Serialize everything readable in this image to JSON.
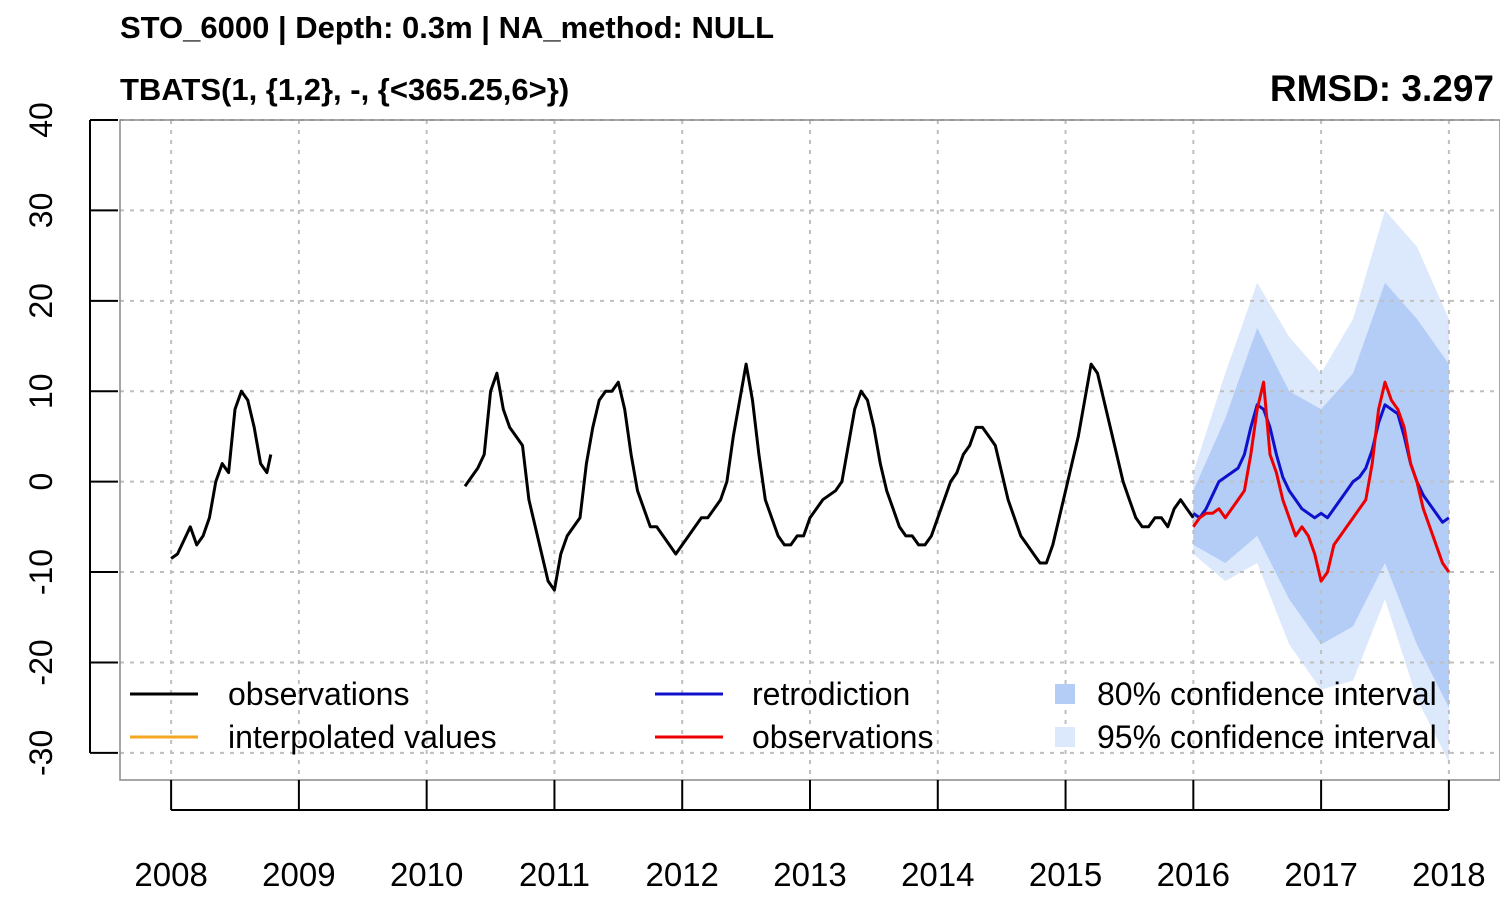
{
  "header": {
    "title": "STO_6000 | Depth: 0.3m | NA_method: NULL",
    "model": "TBATS(1, {1,2}, -, {<365.25,6>})",
    "rmsd": "RMSD: 3.297"
  },
  "colors": {
    "observations": "#000000",
    "interpolated": "#f5a623",
    "retrodiction": "#1010cc",
    "test_observations": "#ee0000",
    "ci80": "#b3cdf7",
    "ci95": "#dce8fc",
    "grid": "#bfbfbf"
  },
  "chart_data": {
    "type": "line",
    "title": "STO_6000 | Depth: 0.3m | NA_method: NULL",
    "subtitle": "TBATS(1, {1,2}, -, {<365.25,6>})",
    "annotation": "RMSD: 3.297",
    "xlabel": "",
    "ylabel": "",
    "xlim": [
      2007.6,
      2018.4
    ],
    "ylim": [
      -33,
      40
    ],
    "x_ticks": [
      2008,
      2009,
      2010,
      2011,
      2012,
      2013,
      2014,
      2015,
      2016,
      2017,
      2018
    ],
    "x_tick_labels": [
      "2008",
      "2009",
      "2010",
      "2011",
      "2012",
      "2013",
      "2014",
      "2015",
      "2016",
      "2017",
      "2018"
    ],
    "y_ticks": [
      -30,
      -20,
      -10,
      0,
      10,
      20,
      30,
      40
    ],
    "y_tick_labels": [
      "-30",
      "-20",
      "-10",
      "0",
      "10",
      "20",
      "30",
      "40"
    ],
    "grid": true,
    "legend_position": "bottom",
    "legend": [
      {
        "label": "observations",
        "kind": "line",
        "color": "#000000"
      },
      {
        "label": "interpolated values",
        "kind": "line",
        "color": "#f5a623"
      },
      {
        "label": "retrodiction",
        "kind": "line",
        "color": "#1010cc"
      },
      {
        "label": "observations",
        "kind": "line",
        "color": "#ee0000"
      },
      {
        "label": "80% confidence interval",
        "kind": "box",
        "color": "#b3cdf7"
      },
      {
        "label": "95% confidence interval",
        "kind": "box",
        "color": "#dce8fc"
      }
    ],
    "series": [
      {
        "kind": "observations",
        "segments": [
          {
            "x": [
              2008.0,
              2008.05,
              2008.1,
              2008.15,
              2008.2,
              2008.25,
              2008.3,
              2008.35,
              2008.4,
              2008.45,
              2008.5,
              2008.55,
              2008.6,
              2008.65,
              2008.7,
              2008.75,
              2008.78
            ],
            "y": [
              -8.5,
              -8,
              -6.5,
              -5,
              -7,
              -6,
              -4,
              0,
              2,
              1,
              8,
              10,
              9,
              6,
              2,
              1,
              3
            ]
          },
          {
            "x": [
              2010.3,
              2010.35,
              2010.4,
              2010.45,
              2010.5,
              2010.55,
              2010.6,
              2010.65,
              2010.7,
              2010.75,
              2010.8,
              2010.85,
              2010.9,
              2010.95,
              2011.0,
              2011.05,
              2011.1,
              2011.15,
              2011.2,
              2011.25,
              2011.3,
              2011.35,
              2011.4,
              2011.45,
              2011.5,
              2011.55,
              2011.6,
              2011.65,
              2011.7,
              2011.75,
              2011.8,
              2011.85,
              2011.9,
              2011.95,
              2012.0,
              2012.05,
              2012.1,
              2012.15,
              2012.2,
              2012.25,
              2012.3,
              2012.35,
              2012.4,
              2012.45,
              2012.5,
              2012.55,
              2012.6,
              2012.65,
              2012.7,
              2012.75,
              2012.8,
              2012.85,
              2012.9,
              2012.95,
              2013.0,
              2013.05,
              2013.1,
              2013.15,
              2013.2,
              2013.25,
              2013.3,
              2013.35,
              2013.4,
              2013.45,
              2013.5,
              2013.55,
              2013.6,
              2013.65,
              2013.7,
              2013.75,
              2013.8,
              2013.85,
              2013.9,
              2013.95,
              2014.0,
              2014.05,
              2014.1,
              2014.15,
              2014.2,
              2014.25,
              2014.3,
              2014.35,
              2014.4,
              2014.45,
              2014.5,
              2014.55,
              2014.6,
              2014.65,
              2014.7,
              2014.75,
              2014.8,
              2014.85,
              2014.9,
              2014.95,
              2015.0,
              2015.05,
              2015.1,
              2015.15,
              2015.2,
              2015.25,
              2015.3,
              2015.35,
              2015.4,
              2015.45,
              2015.5,
              2015.55,
              2015.6,
              2015.65,
              2015.7,
              2015.75,
              2015.8,
              2015.85,
              2015.9,
              2015.95,
              2016.0
            ],
            "y": [
              -0.5,
              0.5,
              1.5,
              3,
              10,
              12,
              8,
              6,
              5,
              4,
              -2,
              -5,
              -8,
              -11,
              -12,
              -8,
              -6,
              -5,
              -4,
              2,
              6,
              9,
              10,
              10,
              11,
              8,
              3,
              -1,
              -3,
              -5,
              -5,
              -6,
              -7,
              -8,
              -7,
              -6,
              -5,
              -4,
              -4,
              -3,
              -2,
              0,
              5,
              9,
              13,
              9,
              3,
              -2,
              -4,
              -6,
              -7,
              -7,
              -6,
              -6,
              -4,
              -3,
              -2,
              -1.5,
              -1,
              0,
              4,
              8,
              10,
              9,
              6,
              2,
              -1,
              -3,
              -5,
              -6,
              -6,
              -7,
              -7,
              -6,
              -4,
              -2,
              0,
              1,
              3,
              4,
              6,
              6,
              5,
              4,
              1,
              -2,
              -4,
              -6,
              -7,
              -8,
              -9,
              -9,
              -7,
              -4,
              -1,
              2,
              5,
              9,
              13,
              12,
              9,
              6,
              3,
              0,
              -2,
              -4,
              -5,
              -5,
              -4,
              -4,
              -5,
              -3,
              -2,
              -3,
              -4
            ]
          }
        ]
      },
      {
        "kind": "retrodiction",
        "x": [
          2016.0,
          2016.05,
          2016.1,
          2016.15,
          2016.2,
          2016.25,
          2016.3,
          2016.35,
          2016.4,
          2016.45,
          2016.5,
          2016.55,
          2016.6,
          2016.65,
          2016.7,
          2016.75,
          2016.8,
          2016.85,
          2016.9,
          2016.95,
          2017.0,
          2017.05,
          2017.1,
          2017.15,
          2017.2,
          2017.25,
          2017.3,
          2017.35,
          2017.4,
          2017.45,
          2017.5,
          2017.55,
          2017.6,
          2017.65,
          2017.7,
          2017.75,
          2017.8,
          2017.85,
          2017.9,
          2017.95,
          2018.0
        ],
        "y": [
          -3.5,
          -4,
          -3,
          -1.5,
          0,
          0.5,
          1,
          1.5,
          3,
          6,
          8.5,
          8,
          6,
          3,
          0.5,
          -1,
          -2,
          -3,
          -3.5,
          -4,
          -3.5,
          -4,
          -3,
          -2,
          -1,
          0,
          0.5,
          1.5,
          3.5,
          6.5,
          8.5,
          8,
          7.5,
          5,
          2,
          0,
          -1.5,
          -2.5,
          -3.5,
          -4.5,
          -4
        ]
      },
      {
        "kind": "test_observations",
        "x": [
          2016.0,
          2016.05,
          2016.1,
          2016.15,
          2016.2,
          2016.25,
          2016.3,
          2016.35,
          2016.4,
          2016.45,
          2016.5,
          2016.55,
          2016.6,
          2016.65,
          2016.7,
          2016.75,
          2016.8,
          2016.85,
          2016.9,
          2016.95,
          2017.0,
          2017.05,
          2017.1,
          2017.15,
          2017.2,
          2017.25,
          2017.3,
          2017.35,
          2017.4,
          2017.45,
          2017.5,
          2017.55,
          2017.6,
          2017.65,
          2017.7,
          2017.75,
          2017.8,
          2017.85,
          2017.9,
          2017.95,
          2018.0
        ],
        "y": [
          -5,
          -4,
          -3.5,
          -3.5,
          -3,
          -4,
          -3,
          -2,
          -1,
          3,
          8,
          11,
          3,
          1,
          -2,
          -4,
          -6,
          -5,
          -6,
          -8,
          -11,
          -10,
          -7,
          -6,
          -5,
          -4,
          -3,
          -2,
          2,
          8,
          11,
          9,
          8,
          6,
          2,
          0,
          -3,
          -5,
          -7,
          -9,
          -10
        ]
      }
    ],
    "intervals": [
      {
        "level": "80%",
        "x": [
          2016.0,
          2016.25,
          2016.5,
          2016.75,
          2017.0,
          2017.25,
          2017.5,
          2017.75,
          2018.0
        ],
        "lower": [
          -7,
          -9,
          -6,
          -13,
          -18,
          -16,
          -9,
          -18,
          -25
        ],
        "upper": [
          -1,
          7,
          17,
          10,
          8,
          12,
          22,
          18,
          13
        ]
      },
      {
        "level": "95%",
        "x": [
          2016.0,
          2016.25,
          2016.5,
          2016.75,
          2017.0,
          2017.25,
          2017.5,
          2017.75,
          2018.0
        ],
        "lower": [
          -8,
          -11,
          -9,
          -18,
          -23,
          -22,
          -13,
          -24,
          -31
        ],
        "upper": [
          1,
          12,
          22,
          16,
          12,
          18,
          30,
          26,
          18
        ]
      }
    ]
  }
}
